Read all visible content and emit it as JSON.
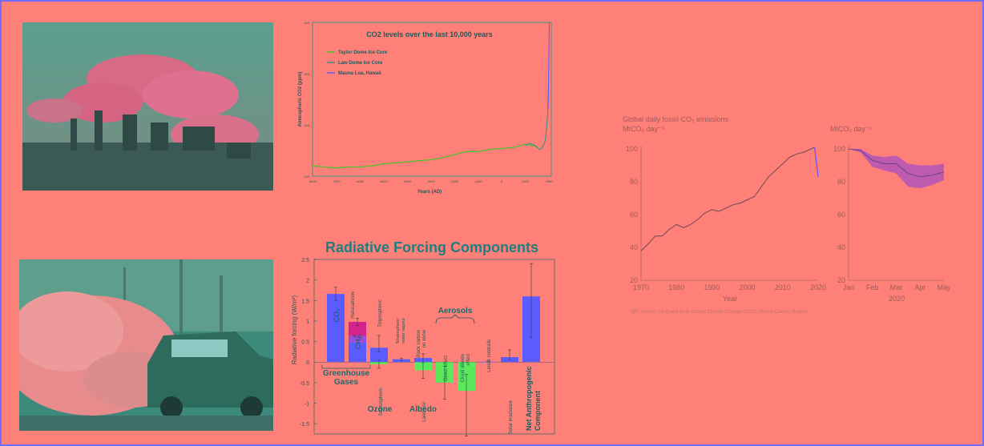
{
  "photos": {
    "factory": {
      "alt": "industrial smokestacks emitting smoke"
    },
    "exhaust": {
      "alt": "car emitting exhaust smoke on street"
    }
  },
  "colors": {
    "background": "#ff8078",
    "border": "#6f6cff",
    "teal": "#3f8f86",
    "green_line": "#4ec12f",
    "blue_bar": "#5a5cff",
    "green_bar": "#5ce85c",
    "magenta_bar": "#d3238e",
    "title_teal": "#1d7f7f"
  },
  "chart_data": [
    {
      "type": "line",
      "title": "CO2 levels over the last 10,000 years",
      "xlabel": "Years (AD)",
      "ylabel": "Atmospheric CO2 (ppm)",
      "xlim": [
        -8000,
        2100
      ],
      "ylim": [
        250,
        400
      ],
      "yticks": [
        "400",
        "350",
        "300",
        "250"
      ],
      "xticks": [
        "-8000",
        "-7000",
        "-6000",
        "-5000",
        "-4000",
        "-3000",
        "-2000",
        "-1000",
        "0",
        "1000",
        "2000"
      ],
      "series": [
        {
          "name": "Taylor Dome Ice Core",
          "color": "#4ec12f",
          "x": [
            -8000,
            -7500,
            -7000,
            -6500,
            -6000,
            -5500,
            -5000,
            -4500,
            -4000,
            -3500,
            -3000,
            -2500,
            -2000,
            -1500,
            -1000,
            -500,
            0,
            500,
            1000,
            1500
          ],
          "y": [
            260,
            259,
            258,
            259,
            259,
            260,
            262,
            263,
            264,
            265,
            266,
            268,
            271,
            274,
            274,
            276,
            277,
            278,
            281,
            279
          ]
        },
        {
          "name": "Law Dome Ice Core",
          "color": "#3f8f86",
          "x": [
            1000,
            1200,
            1400,
            1600,
            1700,
            1800,
            1850,
            1900,
            1950,
            1975
          ],
          "y": [
            280,
            282,
            280,
            276,
            277,
            282,
            285,
            297,
            311,
            331
          ]
        },
        {
          "name": "Mauna Loa, Hawaii",
          "color": "#5a5cff",
          "x": [
            1958,
            1970,
            1980,
            1990,
            2000,
            2010,
            2015
          ],
          "y": [
            315,
            325,
            338,
            354,
            369,
            389,
            400
          ]
        }
      ]
    },
    {
      "type": "bar",
      "title": "Radiative Forcing Components",
      "ylabel": "Radiative forcing (W/m²)",
      "ylim": [
        -1.75,
        2.5
      ],
      "yticks": [
        "2.5",
        "2",
        "1.5",
        "1",
        "0.5",
        "0",
        "-0.5",
        "-1",
        "-1.5"
      ],
      "bars": [
        {
          "label": "CO₂",
          "value": 1.66,
          "err_hi": 1.83,
          "err_lo": 1.49,
          "color": "#5a5cff"
        },
        {
          "label": "Halocarbons",
          "value": 0.98,
          "stack": [
            {
              "label": "CH₄",
              "value": 0.48
            },
            {
              "label": "N₂O",
              "value": 0.16
            },
            {
              "label": "Halocarbons",
              "value": 0.34
            }
          ],
          "err_hi": 1.07,
          "err_lo": 0.89,
          "color": "#d3238e"
        },
        {
          "label": "Tropospheric",
          "value": 0.35,
          "err_hi": 0.65,
          "err_lo": 0.25,
          "color": "#5a5cff"
        },
        {
          "label": "Stratospheric",
          "value": -0.05,
          "err_hi": 0.05,
          "err_lo": -0.15,
          "color": "#5ce85c"
        },
        {
          "label": "Stratospheric water vapour",
          "value": 0.07,
          "err_hi": 0.09,
          "err_lo": 0.04,
          "color": "#5a5cff"
        },
        {
          "label": "Land use",
          "value": -0.2,
          "err_hi": 0.0,
          "err_lo": -0.4,
          "color": "#5ce85c"
        },
        {
          "label": "Black carbon on snow",
          "value": 0.1,
          "err_hi": 0.2,
          "err_lo": 0.0,
          "color": "#5a5cff"
        },
        {
          "label": "Direct effect",
          "value": -0.5,
          "err_hi": -0.1,
          "err_lo": -0.9,
          "color": "#5ce85c"
        },
        {
          "label": "Cloud albedo effect",
          "value": -0.7,
          "err_hi": -0.3,
          "err_lo": -1.8,
          "color": "#5ce85c"
        },
        {
          "label": "Linear contrails",
          "value": 0.01,
          "err_hi": 0.03,
          "err_lo": 0.0,
          "color": "#5a5cff"
        },
        {
          "label": "Solar irradiance",
          "value": 0.12,
          "err_hi": 0.3,
          "err_lo": 0.06,
          "color": "#5a5cff"
        },
        {
          "label": "Net Anthropogenic Component",
          "value": 1.6,
          "err_hi": 2.4,
          "err_lo": 0.6,
          "color": "#5a5cff"
        }
      ],
      "groups": [
        "Greenhouse Gases",
        "Ozone",
        "Albedo",
        "Aerosols"
      ]
    },
    {
      "type": "line",
      "title": "Global daily fossil CO₂ emissions",
      "ylabel": "MtCO₂ day⁻¹",
      "xlabel": "Year",
      "xlim": [
        1970,
        2020
      ],
      "ylim": [
        20,
        100
      ],
      "xticks": [
        "1970",
        "1980",
        "1990",
        "2000",
        "2010",
        "2020"
      ],
      "yticks": [
        "100",
        "80",
        "60",
        "40",
        "20"
      ],
      "x": [
        1970,
        1972,
        1974,
        1976,
        1978,
        1980,
        1982,
        1984,
        1986,
        1988,
        1990,
        1992,
        1994,
        1996,
        1998,
        2000,
        2002,
        2004,
        2006,
        2008,
        2010,
        2012,
        2014,
        2016,
        2018,
        2019,
        2020
      ],
      "y": [
        38,
        42,
        47,
        47,
        51,
        54,
        52,
        54,
        57,
        61,
        63,
        62,
        64,
        66,
        67,
        69,
        71,
        77,
        83,
        87,
        91,
        95,
        97,
        98,
        100,
        101,
        83
      ]
    },
    {
      "type": "area",
      "title": "",
      "ylabel": "MtCO₂ day⁻¹",
      "xlabel": "2020",
      "xticks": [
        "Jan",
        "Feb",
        "Mar",
        "Apr",
        "May"
      ],
      "yticks": [
        "100",
        "80",
        "60",
        "40",
        "20"
      ],
      "ylim": [
        20,
        100
      ],
      "x": [
        0,
        0.5,
        1,
        1.5,
        2,
        2.5,
        3,
        3.5,
        4
      ],
      "y": [
        100,
        99,
        93,
        91,
        91,
        85,
        83,
        84,
        86
      ],
      "y_low": [
        100,
        98,
        89,
        87,
        85,
        77,
        76,
        78,
        81
      ],
      "y_high": [
        100,
        100,
        96,
        95,
        96,
        91,
        90,
        90,
        91
      ]
    }
  ],
  "source_note": "@© Source: Le Quéré et al. Nature Climate Change (2020); Global Carbon Project"
}
